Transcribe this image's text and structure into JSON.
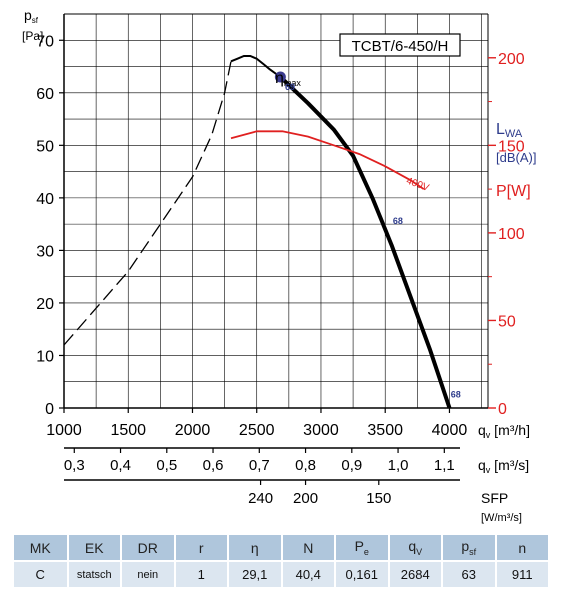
{
  "chart_data": {
    "type": "line",
    "model": "TCBT/6-450/H",
    "y_label": "p",
    "y_label_sub": "sf",
    "y_unit": "[Pa]",
    "y_ticks": [
      0,
      10,
      20,
      30,
      40,
      50,
      60,
      70
    ],
    "ylim": [
      0,
      75
    ],
    "x_ticks": [
      1000,
      1500,
      2000,
      2500,
      3000,
      3500,
      4000
    ],
    "xlim": [
      1000,
      4300
    ],
    "x_label": "q",
    "x_label_sub": "v",
    "x_unit": "[m³/h]",
    "x2_ticks": [
      "0,3",
      "0,4",
      "0,5",
      "0,6",
      "0,7",
      "0,8",
      "0,9",
      "1,0",
      "1,1"
    ],
    "x2_ticks_values": [
      0.3,
      0.4,
      0.5,
      0.6,
      0.7,
      0.8,
      0.9,
      1.0,
      1.1
    ],
    "x2_label": "q",
    "x2_label_sub": "v",
    "x2_unit": "[m³/s]",
    "sfp_ticks": [
      "240",
      "200",
      "150"
    ],
    "sfp_ticks_flow": [
      2530,
      2880,
      3450
    ],
    "sfp_label": "SFP",
    "sfp_unit": "[W/m³/s]",
    "lwa_label": "L",
    "lwa_label_sub": "WA",
    "lwa_unit": "[dB(A)]",
    "p_label": "P",
    "p_unit": "[W]",
    "p_ticks": [
      0,
      50,
      100,
      150,
      200
    ],
    "p_ylim": [
      0,
      225
    ],
    "series": [
      {
        "name": "",
        "style": "dashed",
        "x": [
          1000,
          1250,
          1500,
          1750,
          2000,
          2150,
          2250,
          2300
        ],
        "y": [
          12,
          19,
          26,
          35,
          44,
          52,
          60,
          66
        ]
      },
      {
        "name": "",
        "style": "thin",
        "x": [
          2300,
          2350,
          2400,
          2450,
          2500,
          2550,
          2600,
          2684
        ],
        "y": [
          66,
          66.5,
          67,
          67,
          66.5,
          65.5,
          64.5,
          63
        ]
      },
      {
        "name": "",
        "style": "thick",
        "x": [
          2684,
          2900,
          3100,
          3250,
          3400,
          3550,
          3700,
          3850,
          4000
        ],
        "y": [
          63,
          58,
          53,
          48,
          40,
          31,
          21,
          11,
          0
        ]
      },
      {
        "name": "400V",
        "axis": "power",
        "color": "#e02020",
        "x": [
          2300,
          2500,
          2700,
          2900,
          3100,
          3300,
          3500,
          3700,
          3800
        ],
        "y": [
          154,
          158,
          158,
          155,
          150,
          145,
          138,
          130,
          125
        ]
      }
    ],
    "eta_max": {
      "label": "η",
      "label_sub": "max",
      "x": 2684,
      "y": 63,
      "color": "#3b3b8f"
    },
    "noise_labels": [
      {
        "text": "69",
        "x": 2720,
        "y": 60.5
      },
      {
        "text": "68",
        "x": 3560,
        "y": 35
      },
      {
        "text": "68",
        "x": 4010,
        "y": 2
      }
    ],
    "grid": true,
    "accent_color": "#2e3c8c",
    "power_color": "#e02020"
  },
  "table": {
    "headers": [
      "MK",
      "EK",
      "DR",
      "r",
      "η",
      "N",
      "P",
      "q",
      "p",
      "n"
    ],
    "header_subs": [
      "",
      "",
      "",
      "",
      "",
      "",
      "e",
      "V",
      "sf",
      ""
    ],
    "values": [
      "C",
      "statsch",
      "nein",
      "1",
      "29,1",
      "40,4",
      "0,161",
      "2684",
      "63",
      "911"
    ]
  }
}
